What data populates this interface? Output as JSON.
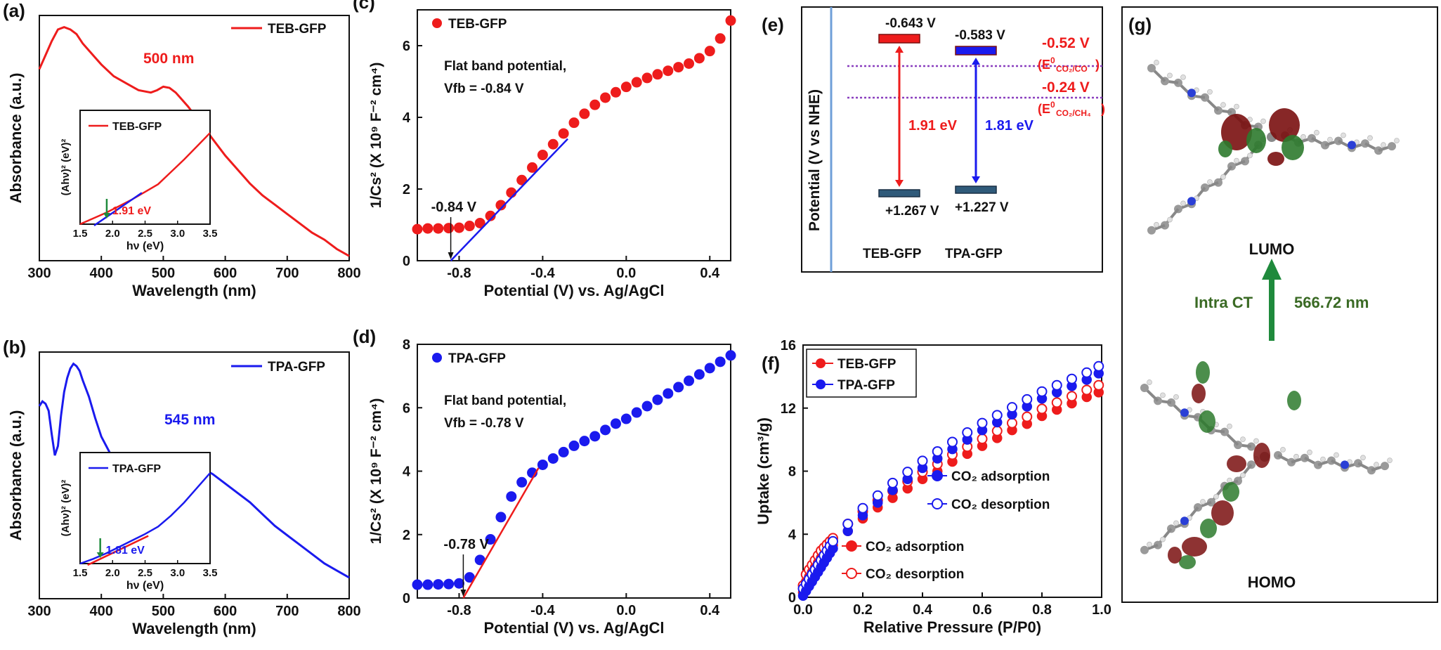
{
  "colors": {
    "red": "#ee1c1c",
    "blue": "#1a1aee",
    "green": "#1f8a3c",
    "purple": "#8a3fbf",
    "darkred": "#7a0f0f",
    "gridline": "#6f9fd8"
  },
  "chart_data": [
    {
      "id": "a",
      "type": "line",
      "panel_label": "(a)",
      "xlabel": "Wavelength (nm)",
      "ylabel": "Absorbance (a.u.)",
      "xlim": [
        300,
        800
      ],
      "xticks": [
        "300",
        "400",
        "500",
        "600",
        "700",
        "800"
      ],
      "series": [
        {
          "name": "TEB-GFP",
          "color": "#ee1c1c",
          "x": [
            300,
            310,
            320,
            330,
            340,
            350,
            360,
            370,
            380,
            390,
            400,
            420,
            440,
            460,
            480,
            490,
            500,
            510,
            520,
            540,
            560,
            580,
            600,
            620,
            640,
            660,
            680,
            700,
            720,
            740,
            760,
            780,
            800
          ],
          "y": [
            0.82,
            0.88,
            0.94,
            0.99,
            1.0,
            0.99,
            0.97,
            0.93,
            0.9,
            0.87,
            0.84,
            0.79,
            0.76,
            0.73,
            0.72,
            0.73,
            0.745,
            0.74,
            0.72,
            0.66,
            0.59,
            0.52,
            0.45,
            0.39,
            0.33,
            0.28,
            0.24,
            0.2,
            0.16,
            0.12,
            0.09,
            0.05,
            0.02
          ]
        }
      ],
      "annotations": [
        {
          "text": "500 nm",
          "color": "#ee1c1c"
        }
      ],
      "inset": {
        "xlabel": "hν (eV)",
        "ylabel": "(Ahν)² (eV)²",
        "xlim": [
          1.5,
          3.5
        ],
        "xticks": [
          "1.5",
          "2.0",
          "2.5",
          "3.0",
          "3.5"
        ],
        "legend": "TEB-GFP",
        "bandgap": "1.91 eV",
        "bandgap_value": 1.91,
        "curve_x": [
          1.5,
          1.7,
          1.9,
          2.1,
          2.3,
          2.5,
          2.7,
          2.9,
          3.1,
          3.3,
          3.5
        ],
        "curve_y": [
          0.0,
          0.06,
          0.12,
          0.19,
          0.26,
          0.34,
          0.42,
          0.55,
          0.68,
          0.82,
          0.96
        ],
        "fit_x": [
          1.91,
          2.45
        ],
        "fit_y": [
          0.03,
          0.33
        ]
      }
    },
    {
      "id": "b",
      "type": "line",
      "panel_label": "(b)",
      "xlabel": "Wavelength (nm)",
      "ylabel": "Absorbance (a.u.)",
      "xlim": [
        300,
        800
      ],
      "xticks": [
        "300",
        "400",
        "500",
        "600",
        "700",
        "800"
      ],
      "series": [
        {
          "name": "TPA-GFP",
          "color": "#1a1aee",
          "x": [
            300,
            305,
            310,
            315,
            320,
            325,
            330,
            335,
            340,
            345,
            350,
            355,
            360,
            365,
            370,
            380,
            390,
            400,
            420,
            440,
            460,
            480,
            500,
            520,
            540,
            560,
            580,
            600,
            620,
            640,
            660,
            680,
            700,
            720,
            740,
            760,
            780,
            800
          ],
          "y": [
            0.82,
            0.84,
            0.83,
            0.8,
            0.7,
            0.61,
            0.65,
            0.78,
            0.88,
            0.94,
            0.98,
            1.0,
            0.99,
            0.97,
            0.93,
            0.86,
            0.77,
            0.69,
            0.59,
            0.52,
            0.47,
            0.49,
            0.54,
            0.57,
            0.58,
            0.56,
            0.53,
            0.49,
            0.45,
            0.41,
            0.36,
            0.31,
            0.27,
            0.23,
            0.19,
            0.15,
            0.12,
            0.09
          ]
        }
      ],
      "annotations": [
        {
          "text": "545 nm",
          "color": "#1a1aee"
        }
      ],
      "inset": {
        "xlabel": "hν (eV)",
        "ylabel": "(Ahν)² (eV)²",
        "xlim": [
          1.5,
          3.5
        ],
        "xticks": [
          "1.5",
          "2.0",
          "2.5",
          "3.0",
          "3.5"
        ],
        "legend": "TPA-GFP",
        "bandgap": "1.81 eV",
        "bandgap_value": 1.81,
        "curve_x": [
          1.5,
          1.7,
          1.9,
          2.1,
          2.3,
          2.5,
          2.7,
          2.9,
          3.1,
          3.3,
          3.5
        ],
        "curve_y": [
          0.0,
          0.05,
          0.11,
          0.18,
          0.25,
          0.32,
          0.4,
          0.52,
          0.66,
          0.82,
          0.98
        ],
        "fit_x": [
          1.81,
          2.55
        ],
        "fit_y": [
          0.03,
          0.3
        ]
      }
    },
    {
      "id": "c",
      "type": "scatter",
      "panel_label": "(c)",
      "xlabel": "Potential (V) vs. Ag/AgCl",
      "ylabel": "1/Cs² (X 10⁹ F⁻² cm⁴)",
      "xlim": [
        -1.0,
        0.5
      ],
      "ylim": [
        0,
        7
      ],
      "xticks": [
        -0.8,
        -0.4,
        0.0,
        0.4
      ],
      "yticks": [
        0,
        2,
        4,
        6
      ],
      "series": [
        {
          "name": "TEB-GFP",
          "color": "#ee1c1c",
          "x": [
            -1.0,
            -0.95,
            -0.9,
            -0.85,
            -0.8,
            -0.75,
            -0.7,
            -0.65,
            -0.6,
            -0.55,
            -0.5,
            -0.45,
            -0.4,
            -0.35,
            -0.3,
            -0.25,
            -0.2,
            -0.15,
            -0.1,
            -0.05,
            0.0,
            0.05,
            0.1,
            0.15,
            0.2,
            0.25,
            0.3,
            0.35,
            0.4,
            0.45,
            0.5
          ],
          "y": [
            0.88,
            0.9,
            0.9,
            0.91,
            0.92,
            0.97,
            1.05,
            1.25,
            1.55,
            1.9,
            2.25,
            2.6,
            2.95,
            3.25,
            3.55,
            3.85,
            4.1,
            4.35,
            4.55,
            4.7,
            4.85,
            4.98,
            5.1,
            5.2,
            5.3,
            5.4,
            5.5,
            5.65,
            5.85,
            6.2,
            6.7
          ]
        }
      ],
      "fit": {
        "x": [
          -0.84,
          -0.28
        ],
        "y": [
          0,
          3.4
        ]
      },
      "annotations": [
        {
          "text": "Flat band potential,"
        },
        {
          "text": "Vfb = -0.84 V"
        },
        {
          "text": "-0.84 V",
          "x": -0.84
        }
      ]
    },
    {
      "id": "d",
      "type": "scatter",
      "panel_label": "(d)",
      "xlabel": "Potential (V) vs. Ag/AgCl",
      "ylabel": "1/Cs² (X 10⁹ F⁻² cm⁴)",
      "xlim": [
        -1.0,
        0.5
      ],
      "ylim": [
        0,
        8
      ],
      "xticks": [
        -0.8,
        -0.4,
        0.0,
        0.4
      ],
      "yticks": [
        0,
        2,
        4,
        6,
        8
      ],
      "series": [
        {
          "name": "TPA-GFP",
          "color": "#1a1aee",
          "x": [
            -1.0,
            -0.95,
            -0.9,
            -0.85,
            -0.8,
            -0.75,
            -0.7,
            -0.65,
            -0.6,
            -0.55,
            -0.5,
            -0.45,
            -0.4,
            -0.35,
            -0.3,
            -0.25,
            -0.2,
            -0.15,
            -0.1,
            -0.05,
            0.0,
            0.05,
            0.1,
            0.15,
            0.2,
            0.25,
            0.3,
            0.35,
            0.4,
            0.45,
            0.5
          ],
          "y": [
            0.42,
            0.42,
            0.43,
            0.44,
            0.46,
            0.65,
            1.2,
            1.85,
            2.55,
            3.2,
            3.65,
            3.95,
            4.2,
            4.4,
            4.6,
            4.8,
            4.95,
            5.1,
            5.3,
            5.5,
            5.65,
            5.85,
            6.05,
            6.25,
            6.45,
            6.65,
            6.85,
            7.05,
            7.25,
            7.45,
            7.65
          ]
        }
      ],
      "fit": {
        "x": [
          -0.78,
          -0.42
        ],
        "y": [
          0,
          4.1
        ]
      },
      "annotations": [
        {
          "text": "Flat band potential,"
        },
        {
          "text": "Vfb = -0.78 V"
        },
        {
          "text": "-0.78 V",
          "x": -0.78
        }
      ]
    },
    {
      "id": "e",
      "type": "band_diagram",
      "panel_label": "(e)",
      "ylabel": "Potential (V vs NHE)",
      "materials": [
        {
          "name": "TEB-GFP",
          "cb": "-0.643 V",
          "vb": "+1.267 V",
          "gap": "1.91 eV",
          "color": "#ee1c1c"
        },
        {
          "name": "TPA-GFP",
          "cb": "-0.583 V",
          "vb": "+1.227 V",
          "gap": "1.81 eV",
          "color": "#1a1aee"
        }
      ],
      "reference_levels": [
        {
          "value": "-0.52 V",
          "label_main": "(E",
          "label_sup": "0",
          "label_sub": "CO₂/CO",
          "label_end": ")"
        },
        {
          "value": "-0.24 V",
          "label_main": "(E",
          "label_sup": "0",
          "label_sub": "CO₂/CH₄",
          "label_end": ")"
        }
      ]
    },
    {
      "id": "f",
      "type": "scatter",
      "panel_label": "(f)",
      "xlabel": "Relative Pressure (P/P0)",
      "ylabel": "Uptake (cm³/g)",
      "xlim": [
        0.0,
        1.0
      ],
      "ylim": [
        0,
        16
      ],
      "xticks": [
        0.0,
        0.2,
        0.4,
        0.6,
        0.8,
        1.0
      ],
      "yticks": [
        0,
        4,
        8,
        12,
        16
      ],
      "legend": [
        "TEB-GFP",
        "TPA-GFP"
      ],
      "series": [
        {
          "name": "TEB-GFP",
          "color": "#ee1c1c",
          "x": [
            0.0,
            0.01,
            0.02,
            0.03,
            0.04,
            0.05,
            0.06,
            0.07,
            0.08,
            0.09,
            0.1,
            0.15,
            0.2,
            0.25,
            0.3,
            0.35,
            0.4,
            0.45,
            0.5,
            0.55,
            0.6,
            0.65,
            0.7,
            0.75,
            0.8,
            0.85,
            0.9,
            0.95,
            0.99
          ],
          "y": [
            0.3,
            1.0,
            1.3,
            1.6,
            1.9,
            2.2,
            2.5,
            2.7,
            2.9,
            3.1,
            3.3,
            4.2,
            5.0,
            5.7,
            6.3,
            6.9,
            7.5,
            8.0,
            8.6,
            9.1,
            9.6,
            10.1,
            10.6,
            11.0,
            11.5,
            11.9,
            12.3,
            12.7,
            13.0
          ]
        },
        {
          "name": "TPA-GFP",
          "color": "#1a1aee",
          "x": [
            0.0,
            0.01,
            0.02,
            0.03,
            0.04,
            0.05,
            0.06,
            0.07,
            0.08,
            0.09,
            0.1,
            0.15,
            0.2,
            0.25,
            0.3,
            0.35,
            0.4,
            0.45,
            0.5,
            0.55,
            0.6,
            0.65,
            0.7,
            0.75,
            0.8,
            0.85,
            0.9,
            0.95,
            0.99
          ],
          "y": [
            0.1,
            0.4,
            0.7,
            1.0,
            1.3,
            1.6,
            1.9,
            2.2,
            2.5,
            2.8,
            3.1,
            4.2,
            5.2,
            6.0,
            6.8,
            7.5,
            8.2,
            8.8,
            9.4,
            10.0,
            10.6,
            11.1,
            11.6,
            12.1,
            12.6,
            13.0,
            13.4,
            13.8,
            14.2
          ]
        }
      ],
      "inner_labels": [
        {
          "text": "CO₂ adsorption",
          "color": "#1a1aee",
          "filled": true
        },
        {
          "text": "CO₂ desorption",
          "color": "#1a1aee",
          "filled": false
        },
        {
          "text": "CO₂ adsorption",
          "color": "#ee1c1c",
          "filled": true
        },
        {
          "text": "CO₂ desorption",
          "color": "#ee1c1c",
          "filled": false
        }
      ]
    }
  ],
  "panel_g": {
    "panel_label": "(g)",
    "lumo_label": "LUMO",
    "homo_label": "HOMO",
    "transition_label": "Intra CT",
    "wavelength_label": "566.72 nm"
  }
}
